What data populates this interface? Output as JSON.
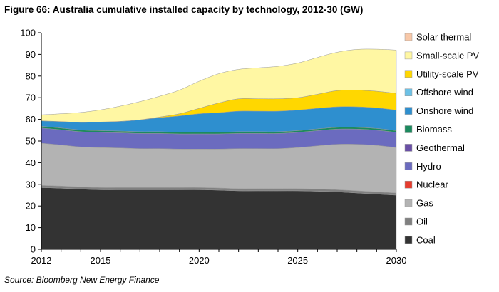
{
  "figure": {
    "title": "Figure 66: Australia cumulative installed capacity by technology, 2012-30 (GW)",
    "source": "Source: Bloomberg New Energy Finance"
  },
  "chart_data": {
    "type": "area",
    "stacked": true,
    "title": "Figure 66: Australia cumulative installed capacity by technology, 2012-30 (GW)",
    "xlabel": "",
    "ylabel": "",
    "xlim": [
      2012,
      2030
    ],
    "ylim": [
      0,
      100
    ],
    "x_ticks": [
      2012,
      2015,
      2020,
      2025,
      2030
    ],
    "y_ticks": [
      0,
      10,
      20,
      30,
      40,
      50,
      60,
      70,
      80,
      90,
      100
    ],
    "grid": false,
    "legend_position": "right",
    "x": [
      2012,
      2013,
      2014,
      2015,
      2016,
      2017,
      2018,
      2019,
      2020,
      2021,
      2022,
      2023,
      2024,
      2025,
      2026,
      2027,
      2028,
      2029,
      2030
    ],
    "series": [
      {
        "name": "Coal",
        "color": "#333333",
        "values": [
          28.5,
          28.2,
          27.8,
          27.5,
          27.5,
          27.5,
          27.5,
          27.5,
          27.5,
          27.3,
          27.0,
          27.0,
          27.0,
          27.0,
          26.8,
          26.5,
          26.0,
          25.5,
          25.0
        ]
      },
      {
        "name": "Oil",
        "color": "#808080",
        "values": [
          1.0,
          1.0,
          1.0,
          1.0,
          1.0,
          1.0,
          1.0,
          1.0,
          1.0,
          1.0,
          1.0,
          1.0,
          1.0,
          1.0,
          1.0,
          1.0,
          1.0,
          1.0,
          1.0
        ]
      },
      {
        "name": "Gas",
        "color": "#b3b3b3",
        "values": [
          19.5,
          19.0,
          18.5,
          18.5,
          18.3,
          18.0,
          18.0,
          17.8,
          17.8,
          18.0,
          18.5,
          18.5,
          18.5,
          19.0,
          20.0,
          21.0,
          21.5,
          21.5,
          21.0
        ]
      },
      {
        "name": "Nuclear",
        "color": "#e63c2e",
        "values": [
          0,
          0,
          0,
          0,
          0,
          0,
          0,
          0,
          0,
          0,
          0,
          0,
          0,
          0,
          0,
          0,
          0,
          0,
          0
        ]
      },
      {
        "name": "Hydro",
        "color": "#6b6bbf",
        "values": [
          7.0,
          7.0,
          7.0,
          7.0,
          7.0,
          7.0,
          7.0,
          7.0,
          7.0,
          7.0,
          7.0,
          7.0,
          7.0,
          7.0,
          7.0,
          7.0,
          7.0,
          7.0,
          7.0
        ]
      },
      {
        "name": "Geothermal",
        "color": "#6a4fa6",
        "values": [
          0,
          0,
          0,
          0,
          0,
          0,
          0,
          0,
          0,
          0,
          0,
          0,
          0,
          0,
          0,
          0,
          0,
          0,
          0
        ]
      },
      {
        "name": "Biomass",
        "color": "#1c8a5e",
        "values": [
          0.8,
          0.8,
          0.8,
          0.8,
          0.8,
          0.8,
          0.8,
          0.8,
          0.8,
          0.8,
          0.8,
          0.8,
          0.8,
          0.8,
          0.8,
          0.8,
          0.8,
          0.8,
          0.8
        ]
      },
      {
        "name": "Onshore wind",
        "color": "#2e8fcf",
        "values": [
          2.5,
          3.0,
          3.5,
          4.0,
          4.5,
          5.5,
          6.5,
          7.5,
          8.5,
          9.0,
          9.5,
          9.5,
          9.5,
          9.5,
          9.5,
          9.5,
          9.5,
          9.5,
          9.5
        ]
      },
      {
        "name": "Offshore wind",
        "color": "#6cc1e6",
        "values": [
          0,
          0,
          0,
          0,
          0,
          0,
          0,
          0,
          0,
          0,
          0,
          0,
          0,
          0,
          0,
          0,
          0,
          0,
          0
        ]
      },
      {
        "name": "Utility-scale PV",
        "color": "#ffd700",
        "values": [
          0,
          0,
          0,
          0,
          0,
          0,
          0.3,
          1.0,
          2.5,
          4.5,
          5.7,
          5.7,
          5.7,
          5.7,
          6.5,
          7.5,
          7.7,
          7.7,
          7.7
        ]
      },
      {
        "name": "Small-scale PV",
        "color": "#fff7a3",
        "values": [
          2.8,
          3.6,
          4.6,
          5.6,
          7.0,
          8.4,
          9.6,
          10.9,
          12.5,
          13.5,
          13.6,
          14.3,
          15.0,
          16.0,
          17.0,
          17.7,
          18.8,
          19.4,
          20.0
        ]
      },
      {
        "name": "Solar thermal",
        "color": "#f8c8a8",
        "values": [
          0,
          0,
          0,
          0,
          0,
          0,
          0,
          0,
          0,
          0,
          0,
          0,
          0,
          0,
          0,
          0,
          0,
          0,
          0
        ]
      }
    ]
  }
}
